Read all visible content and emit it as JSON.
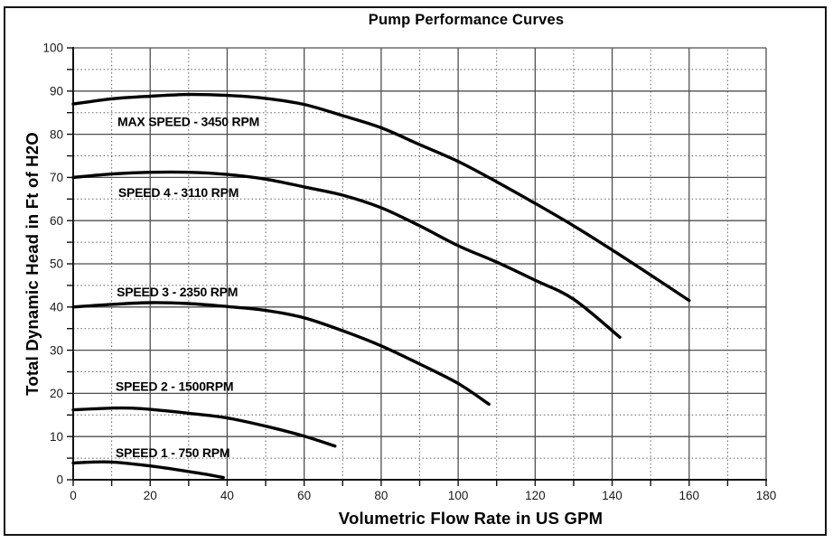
{
  "page": {
    "background": "#ffffff",
    "frame_border_color": "#141414"
  },
  "chart_data": {
    "type": "line",
    "title": "Pump Performance Curves",
    "xlabel": "Volumetric Flow Rate in US GPM",
    "ylabel": "Total Dynamic Head in Ft of H2O",
    "xlim": [
      0,
      180
    ],
    "ylim": [
      0,
      100
    ],
    "x_major_step": 20,
    "x_minor_step": 10,
    "y_major_step": 10,
    "y_minor_step": 5,
    "grid": "major solid, minor dotted",
    "legend_position": "labels inline under each curve",
    "colors": {
      "curve": "#000000",
      "grid_major": "#4f4f4f",
      "grid_minor": "#5e5e5e",
      "axis": "#111111",
      "text": "#000000"
    },
    "series": [
      {
        "name": "MAX SPEED - 3450 RPM",
        "label_at": [
          11.5,
          83.0
        ],
        "points": [
          [
            0,
            87
          ],
          [
            10,
            88.2
          ],
          [
            20,
            88.8
          ],
          [
            30,
            89.2
          ],
          [
            40,
            89
          ],
          [
            50,
            88.3
          ],
          [
            60,
            86.9
          ],
          [
            70,
            84.3
          ],
          [
            80,
            81.5
          ],
          [
            90,
            77.6
          ],
          [
            100,
            73.7
          ],
          [
            110,
            69
          ],
          [
            120,
            64
          ],
          [
            130,
            58.8
          ],
          [
            140,
            53.2
          ],
          [
            150,
            47.4
          ],
          [
            160,
            41.5
          ]
        ]
      },
      {
        "name": "SPEED 4 - 3110 RPM",
        "label_at": [
          11.7,
          66.5
        ],
        "points": [
          [
            0,
            70
          ],
          [
            10,
            70.8
          ],
          [
            20,
            71.2
          ],
          [
            30,
            71.2
          ],
          [
            40,
            70.7
          ],
          [
            50,
            69.6
          ],
          [
            60,
            67.8
          ],
          [
            70,
            65.9
          ],
          [
            80,
            63
          ],
          [
            90,
            58.8
          ],
          [
            100,
            54.2
          ],
          [
            110,
            50.4
          ],
          [
            120,
            46.2
          ],
          [
            130,
            41.8
          ],
          [
            142,
            33
          ]
        ]
      },
      {
        "name": "SPEED 3 - 2350 RPM",
        "label_at": [
          11.3,
          43.5
        ],
        "points": [
          [
            0,
            40
          ],
          [
            10,
            40.6
          ],
          [
            20,
            41
          ],
          [
            30,
            40.8
          ],
          [
            40,
            40.1
          ],
          [
            50,
            39.2
          ],
          [
            60,
            37.5
          ],
          [
            70,
            34.5
          ],
          [
            80,
            31
          ],
          [
            90,
            26.8
          ],
          [
            100,
            22.3
          ],
          [
            108,
            17.5
          ]
        ]
      },
      {
        "name": "SPEED 2 - 1500RPM",
        "label_at": [
          11.0,
          21.7
        ],
        "points": [
          [
            0,
            16.2
          ],
          [
            10,
            16.6
          ],
          [
            15,
            16.6
          ],
          [
            20,
            16.3
          ],
          [
            30,
            15.4
          ],
          [
            40,
            14.3
          ],
          [
            50,
            12.4
          ],
          [
            60,
            10.1
          ],
          [
            68,
            7.8
          ]
        ]
      },
      {
        "name": "SPEED 1 - 750 RPM",
        "label_at": [
          11.0,
          6.3
        ],
        "points": [
          [
            0,
            3.9
          ],
          [
            5,
            4.1
          ],
          [
            10,
            4.1
          ],
          [
            15,
            3.7
          ],
          [
            20,
            3.2
          ],
          [
            25,
            2.6
          ],
          [
            30,
            1.9
          ],
          [
            35,
            1.2
          ],
          [
            39,
            0.5
          ]
        ]
      }
    ],
    "x_tick_labels": [
      0,
      20,
      40,
      60,
      80,
      100,
      120,
      140,
      160,
      180
    ],
    "y_tick_labels": [
      0,
      10,
      20,
      30,
      40,
      50,
      60,
      70,
      80,
      90,
      100
    ]
  }
}
